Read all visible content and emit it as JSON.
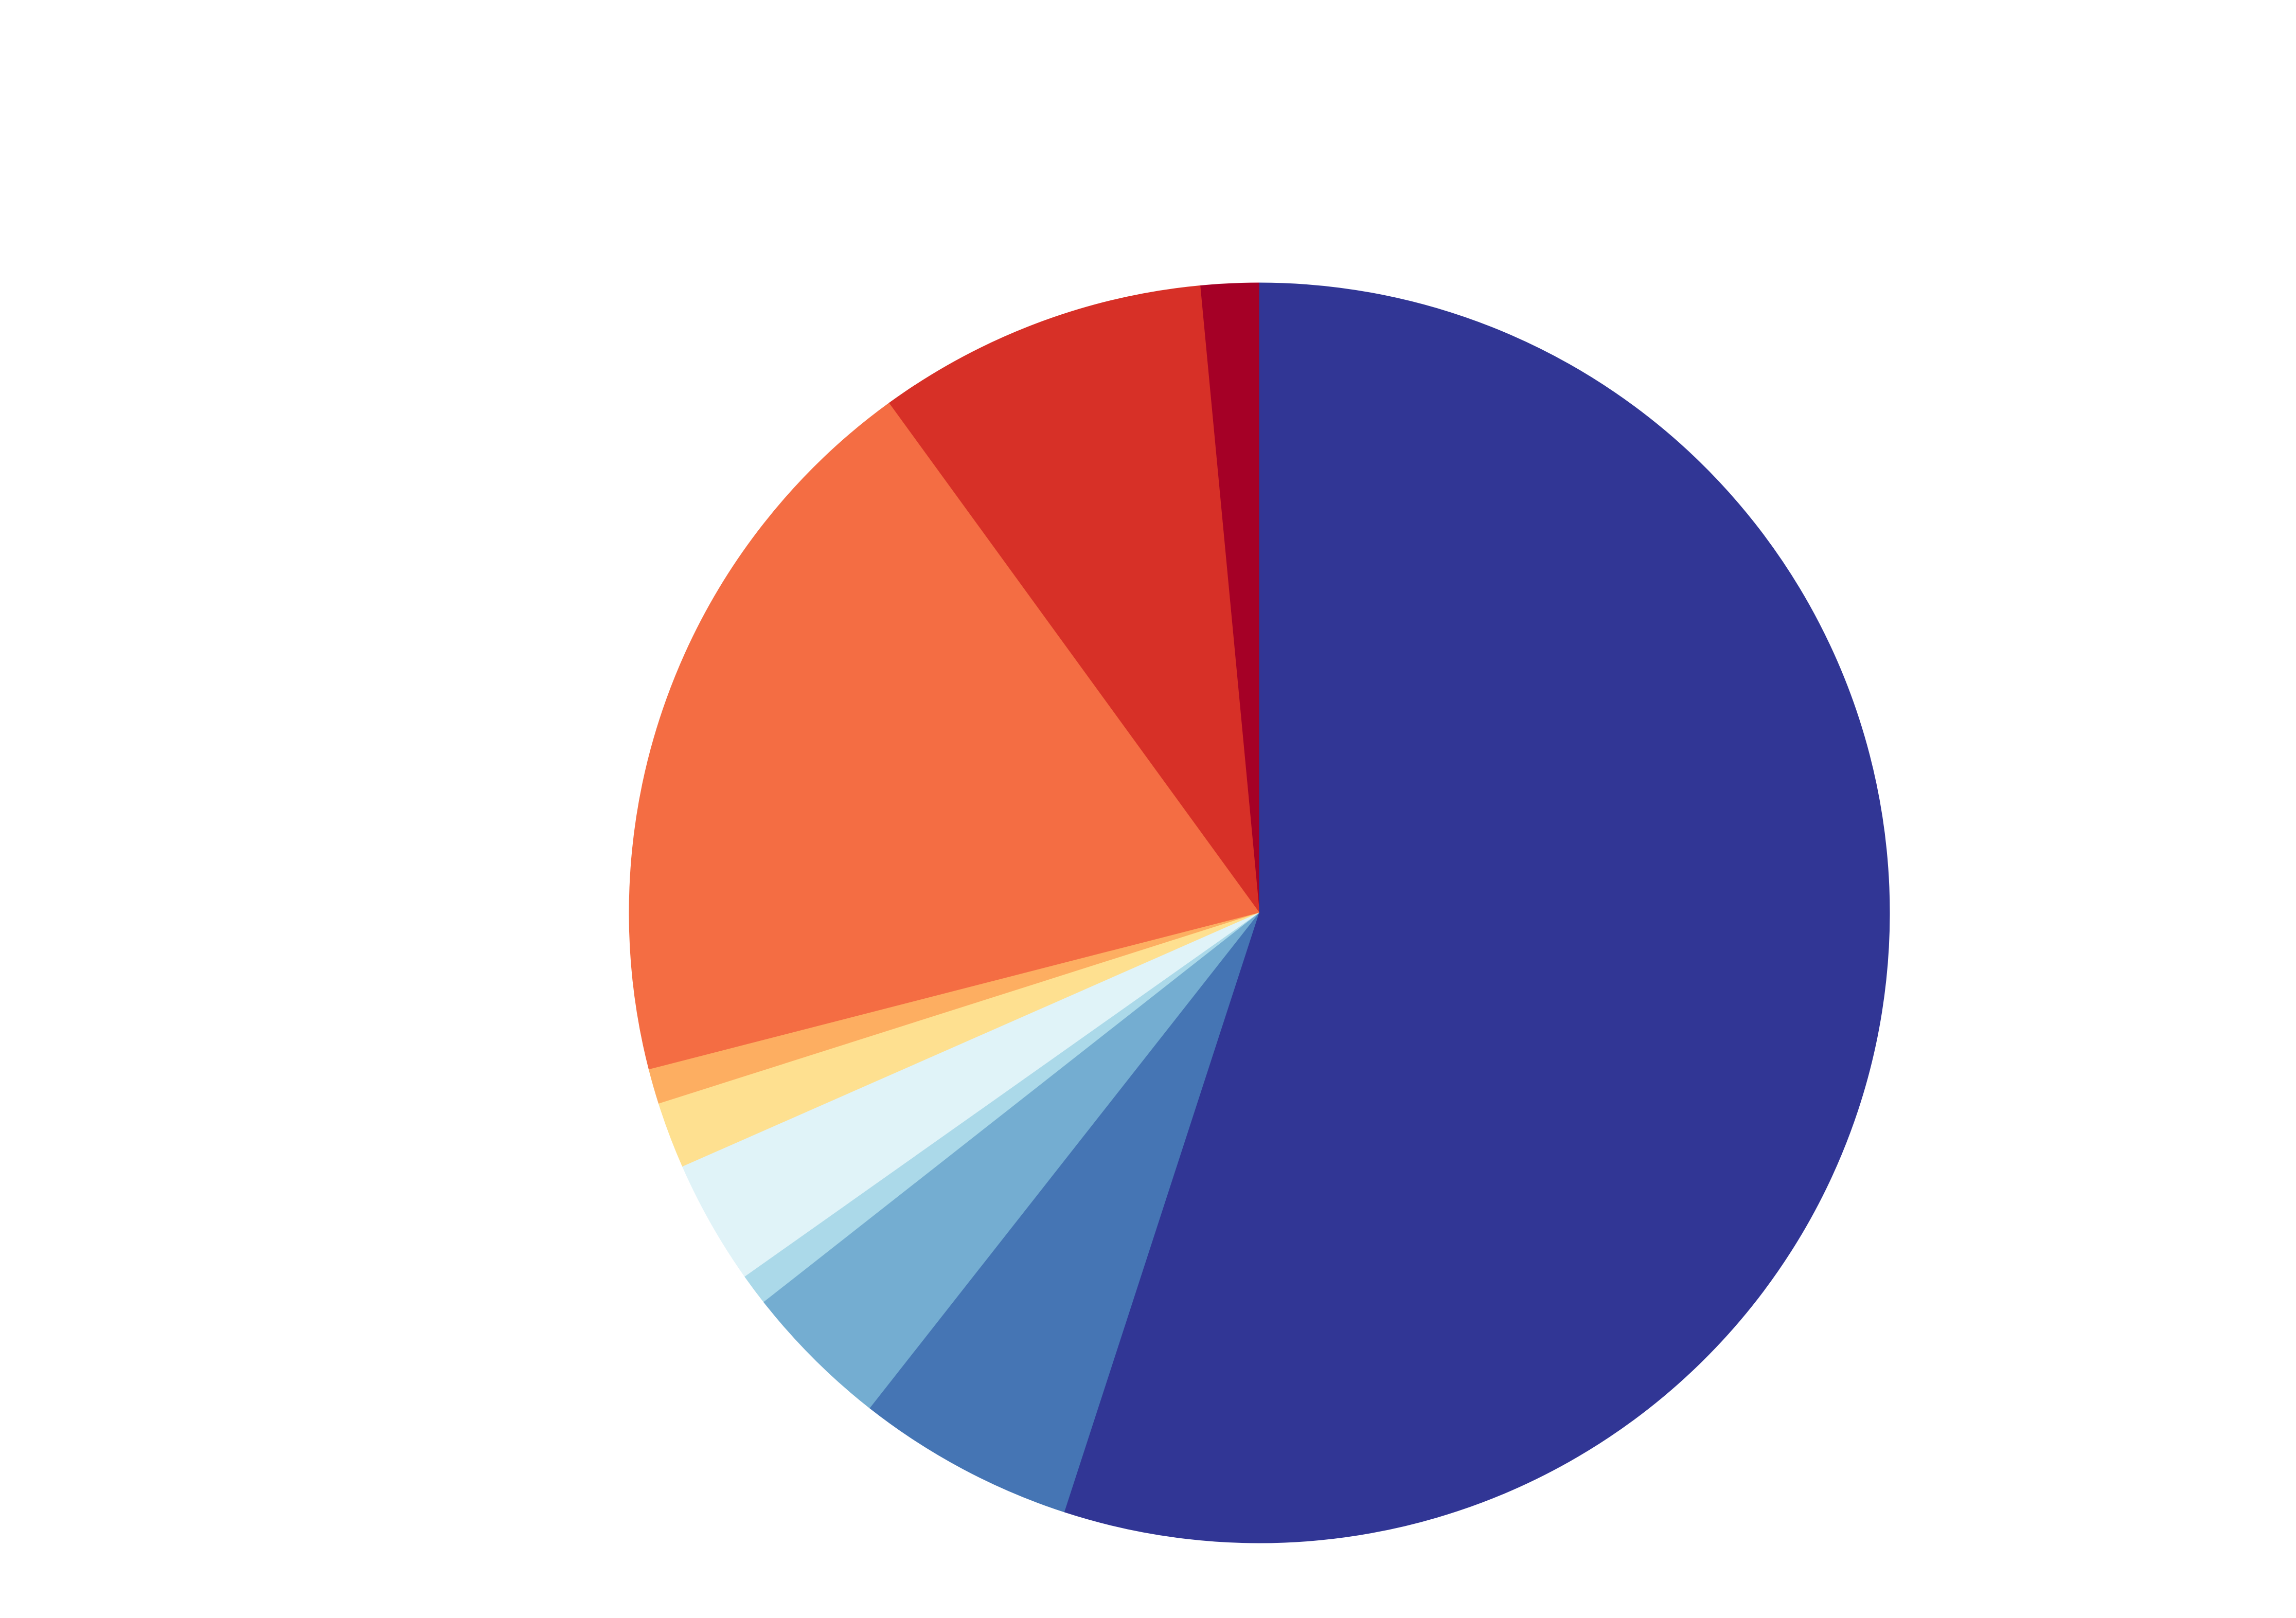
{
  "chart_data": {
    "type": "pie",
    "title": "",
    "start_angle_deg": 90,
    "direction": "counterclockwise",
    "slices": [
      {
        "value": 1.5,
        "color": "#a50026"
      },
      {
        "value": 8.5,
        "color": "#d73027"
      },
      {
        "value": 19.0,
        "color": "#f46d43"
      },
      {
        "value": 0.9,
        "color": "#fdae61"
      },
      {
        "value": 1.7,
        "color": "#fee090"
      },
      {
        "value": 3.2,
        "color": "#e0f3f8"
      },
      {
        "value": 0.8,
        "color": "#abd9e9"
      },
      {
        "value": 3.8,
        "color": "#74add1"
      },
      {
        "value": 5.6,
        "color": "#4575b4"
      },
      {
        "value": 55.0,
        "color": "#313695"
      }
    ]
  }
}
